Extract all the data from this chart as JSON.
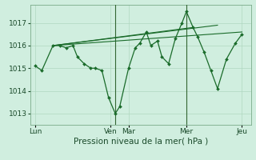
{
  "bg_color": "#d0eedf",
  "grid_color": "#b0d8c0",
  "line_color": "#1a6b2a",
  "marker_color": "#1a6b2a",
  "xlabel": "Pression niveau de la mer( hPa )",
  "xlabel_fontsize": 7.5,
  "tick_fontsize": 6.5,
  "ylim": [
    1012.5,
    1017.8
  ],
  "yticks": [
    1013,
    1014,
    1015,
    1016,
    1017
  ],
  "xtick_labels": [
    "Lun",
    "Ven",
    "Mar",
    "Mer",
    "Jeu"
  ],
  "xtick_positions": [
    0.0,
    0.34,
    0.42,
    0.68,
    0.93
  ],
  "series0_x": [
    0.0,
    0.03,
    0.08,
    0.11,
    0.14,
    0.17,
    0.19,
    0.22,
    0.25,
    0.27,
    0.3,
    0.33,
    0.36,
    0.38,
    0.42,
    0.45,
    0.47,
    0.5,
    0.52,
    0.55,
    0.57,
    0.6,
    0.63,
    0.66,
    0.68,
    0.71,
    0.73,
    0.76,
    0.79,
    0.82,
    0.86,
    0.9,
    0.93
  ],
  "series0_y": [
    1015.1,
    1014.9,
    1016.0,
    1016.0,
    1015.9,
    1016.0,
    1015.5,
    1015.2,
    1015.0,
    1015.0,
    1014.9,
    1013.7,
    1013.0,
    1013.3,
    1015.0,
    1015.9,
    1016.1,
    1016.6,
    1016.0,
    1016.2,
    1015.5,
    1015.2,
    1016.3,
    1017.0,
    1017.5,
    1016.8,
    1016.4,
    1015.7,
    1014.9,
    1014.1,
    1015.4,
    1016.1,
    1016.5
  ],
  "series1_x": [
    0.08,
    0.93
  ],
  "series1_y": [
    1016.0,
    1016.6
  ],
  "series2_x": [
    0.08,
    0.82
  ],
  "series2_y": [
    1016.0,
    1016.9
  ],
  "series3_x": [
    0.08,
    0.71
  ],
  "series3_y": [
    1016.0,
    1016.8
  ],
  "vline_positions": [
    0.36,
    0.68
  ],
  "vline_color": "#336633"
}
